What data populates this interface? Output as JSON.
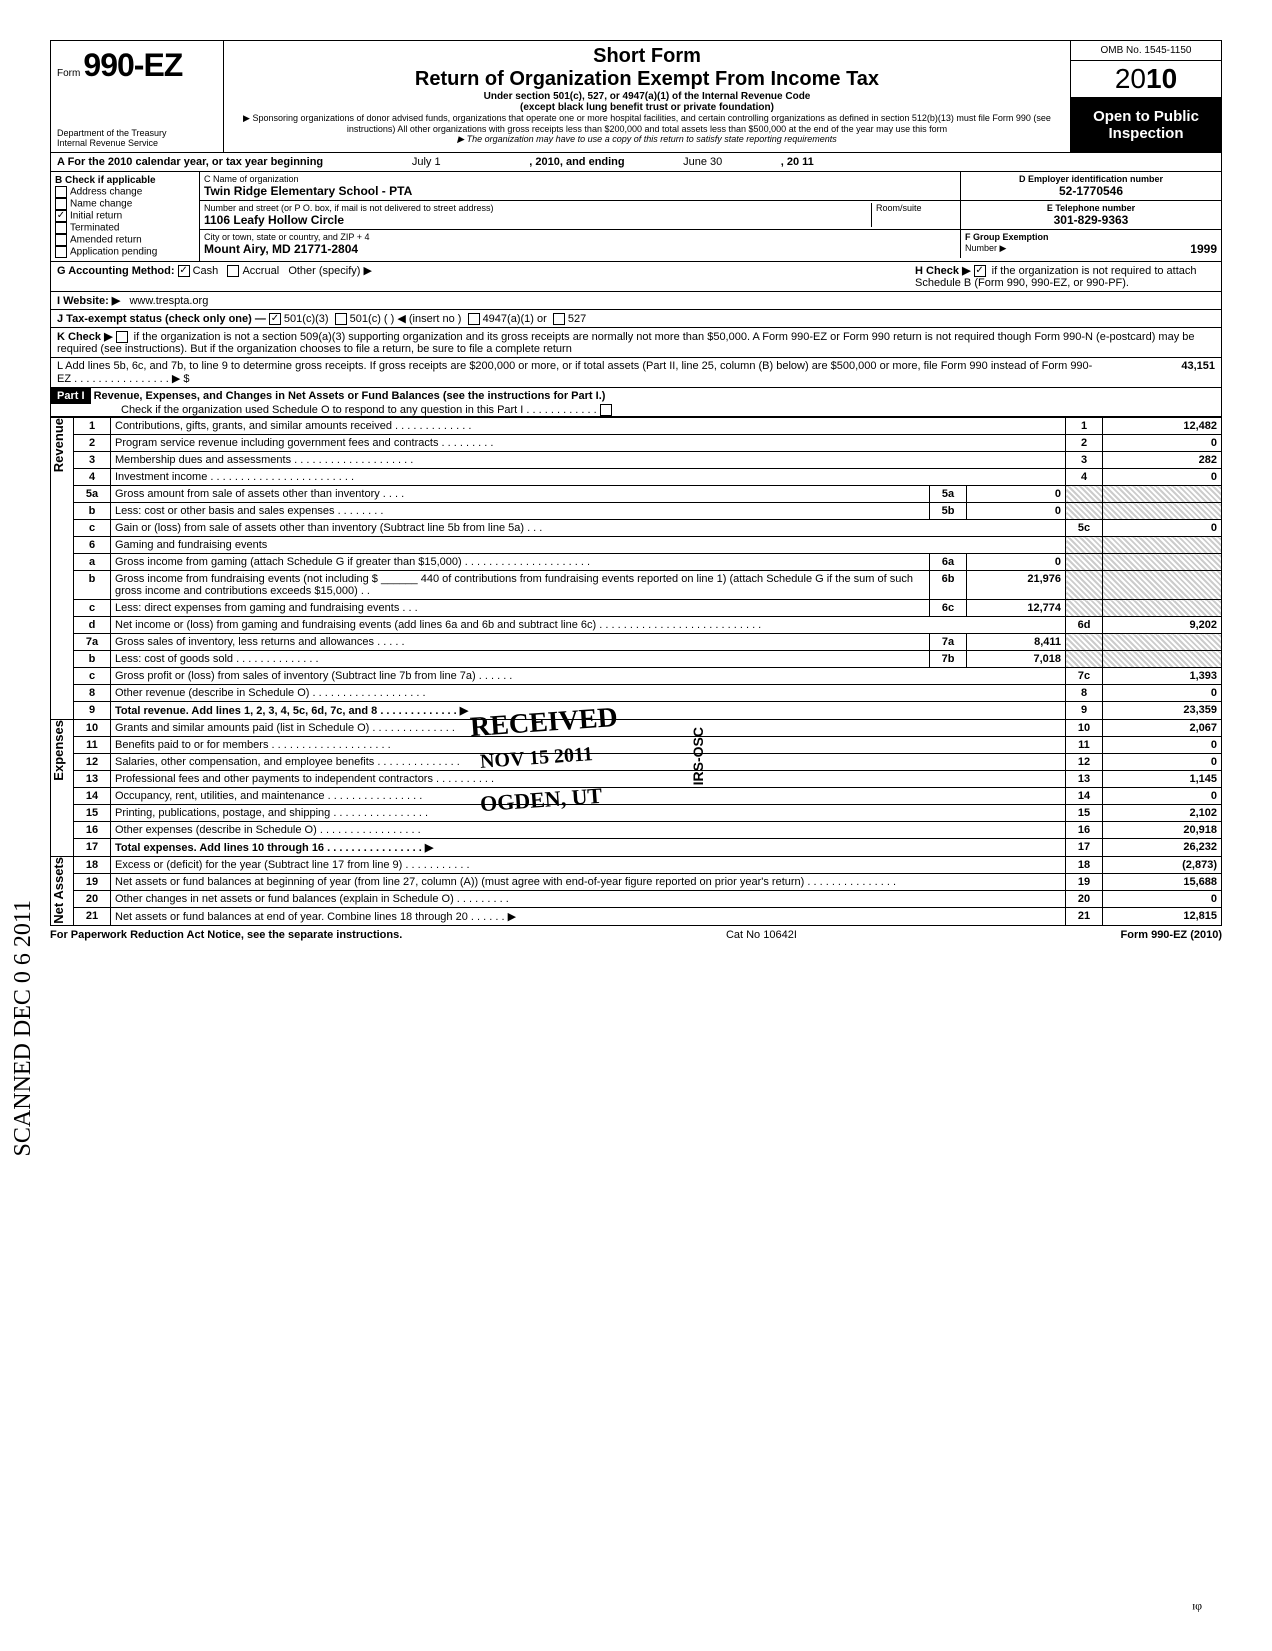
{
  "header": {
    "form_small": "Form",
    "form_number": "990-EZ",
    "dept1": "Department of the Treasury",
    "dept2": "Internal Revenue Service",
    "title1": "Short Form",
    "title2": "Return of Organization Exempt From Income Tax",
    "sub1": "Under section 501(c), 527, or 4947(a)(1) of the Internal Revenue Code",
    "sub2": "(except black lung benefit trust or private foundation)",
    "note1": "▶ Sponsoring organizations of donor advised funds, organizations that operate one or more hospital facilities, and certain controlling organizations as defined in section 512(b)(13) must file Form 990 (see instructions) All other organizations with gross receipts less than $200,000 and total assets less than $500,000 at the end of the year may use this form",
    "note2": "▶ The organization may have to use a copy of this return to satisfy state reporting requirements",
    "omb": "OMB No. 1545-1150",
    "year_prefix": "20",
    "year_bold": "10",
    "inspect1": "Open to Public",
    "inspect2": "Inspection"
  },
  "rowA": {
    "label": "A  For the 2010 calendar year, or tax year beginning",
    "begin": "July 1",
    "mid": ", 2010, and ending",
    "end": "June 30",
    "yr": ", 20   11"
  },
  "boxB": {
    "label": "B  Check if applicable",
    "opts": [
      "Address change",
      "Name change",
      "Initial return",
      "Terminated",
      "Amended return",
      "Application pending"
    ],
    "checked_idx": 2
  },
  "boxC": {
    "name_lab": "C  Name of organization",
    "name": "Twin Ridge Elementary School - PTA",
    "street_lab": "Number and street (or P O. box, if mail is not delivered to street address)",
    "room_lab": "Room/suite",
    "street": "1106 Leafy Hollow Circle",
    "city_lab": "City or town, state or country, and ZIP + 4",
    "city": "Mount Airy, MD 21771-2804"
  },
  "boxD": {
    "lab": "D Employer identification number",
    "val": "52-1770546"
  },
  "boxE": {
    "lab": "E Telephone number",
    "val": "301-829-9363"
  },
  "boxF": {
    "lab": "F Group Exemption",
    "lab2": "Number ▶",
    "val": "1999"
  },
  "rowG": {
    "lab": "G  Accounting Method:",
    "cash": "Cash",
    "accr": "Accrual",
    "other": "Other (specify) ▶"
  },
  "rowH": {
    "lab": "H  Check ▶",
    "txt": "if the organization is not required to attach Schedule B (Form 990, 990-EZ, or 990-PF).",
    "checked": true
  },
  "rowI": {
    "lab": "I   Website: ▶",
    "val": "www.trespta.org"
  },
  "rowJ": {
    "lab": "J  Tax-exempt status (check only one) —",
    "o1": "501(c)(3)",
    "o2": "501(c) (          ) ◀ (insert no )",
    "o3": "4947(a)(1) or",
    "o4": "527"
  },
  "rowK": {
    "lab": "K  Check ▶",
    "txt": "if the organization is not a section 509(a)(3) supporting organization and its gross receipts are normally not more than $50,000. A Form 990-EZ or Form 990 return is not required though Form 990-N (e-postcard) may be required (see instructions). But if the organization chooses to file a return, be sure to file a complete return"
  },
  "rowL": {
    "txt": "L  Add lines 5b, 6c, and 7b, to line 9 to determine gross receipts. If gross receipts are $200,000 or more, or if total assets (Part II, line 25, column (B) below) are $500,000 or more, file Form 990 instead of Form 990-EZ  .   .   .   .   .   .   .   .   .   .   .   .   .   .   .   .   ▶  $",
    "val": "43,151"
  },
  "part1": {
    "hdr": "Part I",
    "title": "Revenue, Expenses, and Changes in Net Assets or Fund Balances (see the instructions for Part I.)",
    "check": "Check if the organization used Schedule O to respond to any question in this Part I  .   .   .   .   .   .   .   .   .   .   .   ."
  },
  "sections": {
    "rev": "Revenue",
    "exp": "Expenses",
    "na": "Net Assets"
  },
  "lines": [
    {
      "sec": "rev",
      "n": "1",
      "d": "Contributions, gifts, grants, and similar amounts received .   .   .   .   .   .   .   .   .   .   .   .   .",
      "rn": "1",
      "a": "12,482"
    },
    {
      "sec": "rev",
      "n": "2",
      "d": "Program service revenue including government fees and contracts   .   .   .   .   .   .   .   .   .",
      "rn": "2",
      "a": "0"
    },
    {
      "sec": "rev",
      "n": "3",
      "d": "Membership dues and assessments .   .   .   .   .   .   .   .   .   .   .   .   .   .   .   .   .   .   .   .",
      "rn": "3",
      "a": "282"
    },
    {
      "sec": "rev",
      "n": "4",
      "d": "Investment income   .   .   .   .   .   .   .   .   .   .   .   .   .   .   .   .   .   .   .   .   .   .   .   .",
      "rn": "4",
      "a": "0"
    },
    {
      "sec": "rev",
      "n": "5a",
      "d": "Gross amount from sale of assets other than inventory   .   .   .   .",
      "in": "5a",
      "iv": "0",
      "shade": true
    },
    {
      "sec": "rev",
      "n": "b",
      "d": "Less: cost or other basis and sales expenses .   .   .   .   .   .   .   .",
      "in": "5b",
      "iv": "0",
      "shade": true
    },
    {
      "sec": "rev",
      "n": "c",
      "d": "Gain or (loss) from sale of assets other than inventory (Subtract line 5b from line 5a)  .   .   .",
      "rn": "5c",
      "a": "0"
    },
    {
      "sec": "rev",
      "n": "6",
      "d": "Gaming and fundraising events",
      "shade": true
    },
    {
      "sec": "rev",
      "n": "a",
      "d": "Gross income from gaming (attach Schedule G if greater than $15,000) .   .   .   .   .   .   .   .   .   .   .   .   .   .   .   .   .   .   .   .   .",
      "in": "6a",
      "iv": "0",
      "shade": true
    },
    {
      "sec": "rev",
      "n": "b",
      "d": "Gross income from fundraising events (not including $ ______ 440 of contributions from fundraising events reported on line 1) (attach Schedule G if the sum of such gross income and contributions exceeds $15,000) .   .",
      "in": "6b",
      "iv": "21,976",
      "shade": true
    },
    {
      "sec": "rev",
      "n": "c",
      "d": "Less: direct expenses from gaming and fundraising events   .   .   .",
      "in": "6c",
      "iv": "12,774",
      "shade": true
    },
    {
      "sec": "rev",
      "n": "d",
      "d": "Net income or (loss) from gaming and fundraising events (add lines 6a and 6b and subtract line 6c)   .   .   .   .   .   .   .   .   .   .   .   .   .   .   .   .   .   .   .   .   .   .   .   .   .   .   .",
      "rn": "6d",
      "a": "9,202"
    },
    {
      "sec": "rev",
      "n": "7a",
      "d": "Gross sales of inventory, less returns and allowances  .   .   .   .   .",
      "in": "7a",
      "iv": "8,411",
      "shade": true
    },
    {
      "sec": "rev",
      "n": "b",
      "d": "Less: cost of goods sold   .   .   .   .   .   .   .   .   .   .   .   .   .   .",
      "in": "7b",
      "iv": "7,018",
      "shade": true
    },
    {
      "sec": "rev",
      "n": "c",
      "d": "Gross profit or (loss) from sales of inventory (Subtract line 7b from line 7a)  .   .   .   .   .   .",
      "rn": "7c",
      "a": "1,393"
    },
    {
      "sec": "rev",
      "n": "8",
      "d": "Other revenue (describe in Schedule O) .   .   .   .   .   .   .   .   .   .   .   .   .   .   .   .   .   .   .",
      "rn": "8",
      "a": "0"
    },
    {
      "sec": "rev",
      "n": "9",
      "d": "Total revenue. Add lines 1, 2, 3, 4, 5c, 6d, 7c, and 8   .   .   .   .   .   .   .   .   .   .   .   .   .   ▶",
      "rn": "9",
      "a": "23,359",
      "bold": true
    },
    {
      "sec": "exp",
      "n": "10",
      "d": "Grants and similar amounts paid (list in Schedule O)   .   .   .   .   .   .   .   .   .   .   .   .   .   .",
      "rn": "10",
      "a": "2,067"
    },
    {
      "sec": "exp",
      "n": "11",
      "d": "Benefits paid to or for members   .   .   .   .   .   .   .   .   .   .   .   .   .   .   .   .   .   .   .   .",
      "rn": "11",
      "a": "0"
    },
    {
      "sec": "exp",
      "n": "12",
      "d": "Salaries, other compensation, and employee benefits  .   .   .   .   .   .   .   .   .   .   .   .   .   .",
      "rn": "12",
      "a": "0"
    },
    {
      "sec": "exp",
      "n": "13",
      "d": "Professional fees and other payments to independent contractors  .   .   .   .   .   .   .   .   .   .",
      "rn": "13",
      "a": "1,145"
    },
    {
      "sec": "exp",
      "n": "14",
      "d": "Occupancy, rent, utilities, and maintenance   .   .   .   .   .   .   .   .   .   .   .   .   .   .   .   .",
      "rn": "14",
      "a": "0"
    },
    {
      "sec": "exp",
      "n": "15",
      "d": "Printing, publications, postage, and shipping .   .   .   .   .   .   .   .   .   .   .   .   .   .   .   .",
      "rn": "15",
      "a": "2,102"
    },
    {
      "sec": "exp",
      "n": "16",
      "d": "Other expenses (describe in Schedule O)  .   .   .   .   .   .   .   .   .   .   .   .   .   .   .   .   .",
      "rn": "16",
      "a": "20,918"
    },
    {
      "sec": "exp",
      "n": "17",
      "d": "Total expenses. Add lines 10 through 16   .   .   .   .   .   .   .   .   .   .   .   .   .   .   .   .   ▶",
      "rn": "17",
      "a": "26,232",
      "bold": true
    },
    {
      "sec": "na",
      "n": "18",
      "d": "Excess or (deficit) for the year (Subtract line 17 from line 9)   .   .   .   .   .   .   .   .   .   .   .",
      "rn": "18",
      "a": "(2,873)"
    },
    {
      "sec": "na",
      "n": "19",
      "d": "Net assets or fund balances at beginning of year (from line 27, column (A)) (must agree with end-of-year figure reported on prior year's return)   .   .   .   .   .   .   .   .   .   .   .   .   .   .   .",
      "rn": "19",
      "a": "15,688"
    },
    {
      "sec": "na",
      "n": "20",
      "d": "Other changes in net assets or fund balances (explain in Schedule O) .   .   .   .   .   .   .   .   .",
      "rn": "20",
      "a": "0"
    },
    {
      "sec": "na",
      "n": "21",
      "d": "Net assets or fund balances at end of year. Combine lines 18 through 20   .   .   .   .   .   .   ▶",
      "rn": "21",
      "a": "12,815"
    }
  ],
  "footer": {
    "l": "For Paperwork Reduction Act Notice, see the separate instructions.",
    "m": "Cat No 10642I",
    "r": "Form 990-EZ (2010)"
  },
  "stamps": {
    "side": "SCANNED DEC 0 6 2011",
    "rec": "RECEIVED",
    "date": "NOV 15 2011",
    "loc": "OGDEN, UT",
    "irs": "IRS-OSC"
  }
}
